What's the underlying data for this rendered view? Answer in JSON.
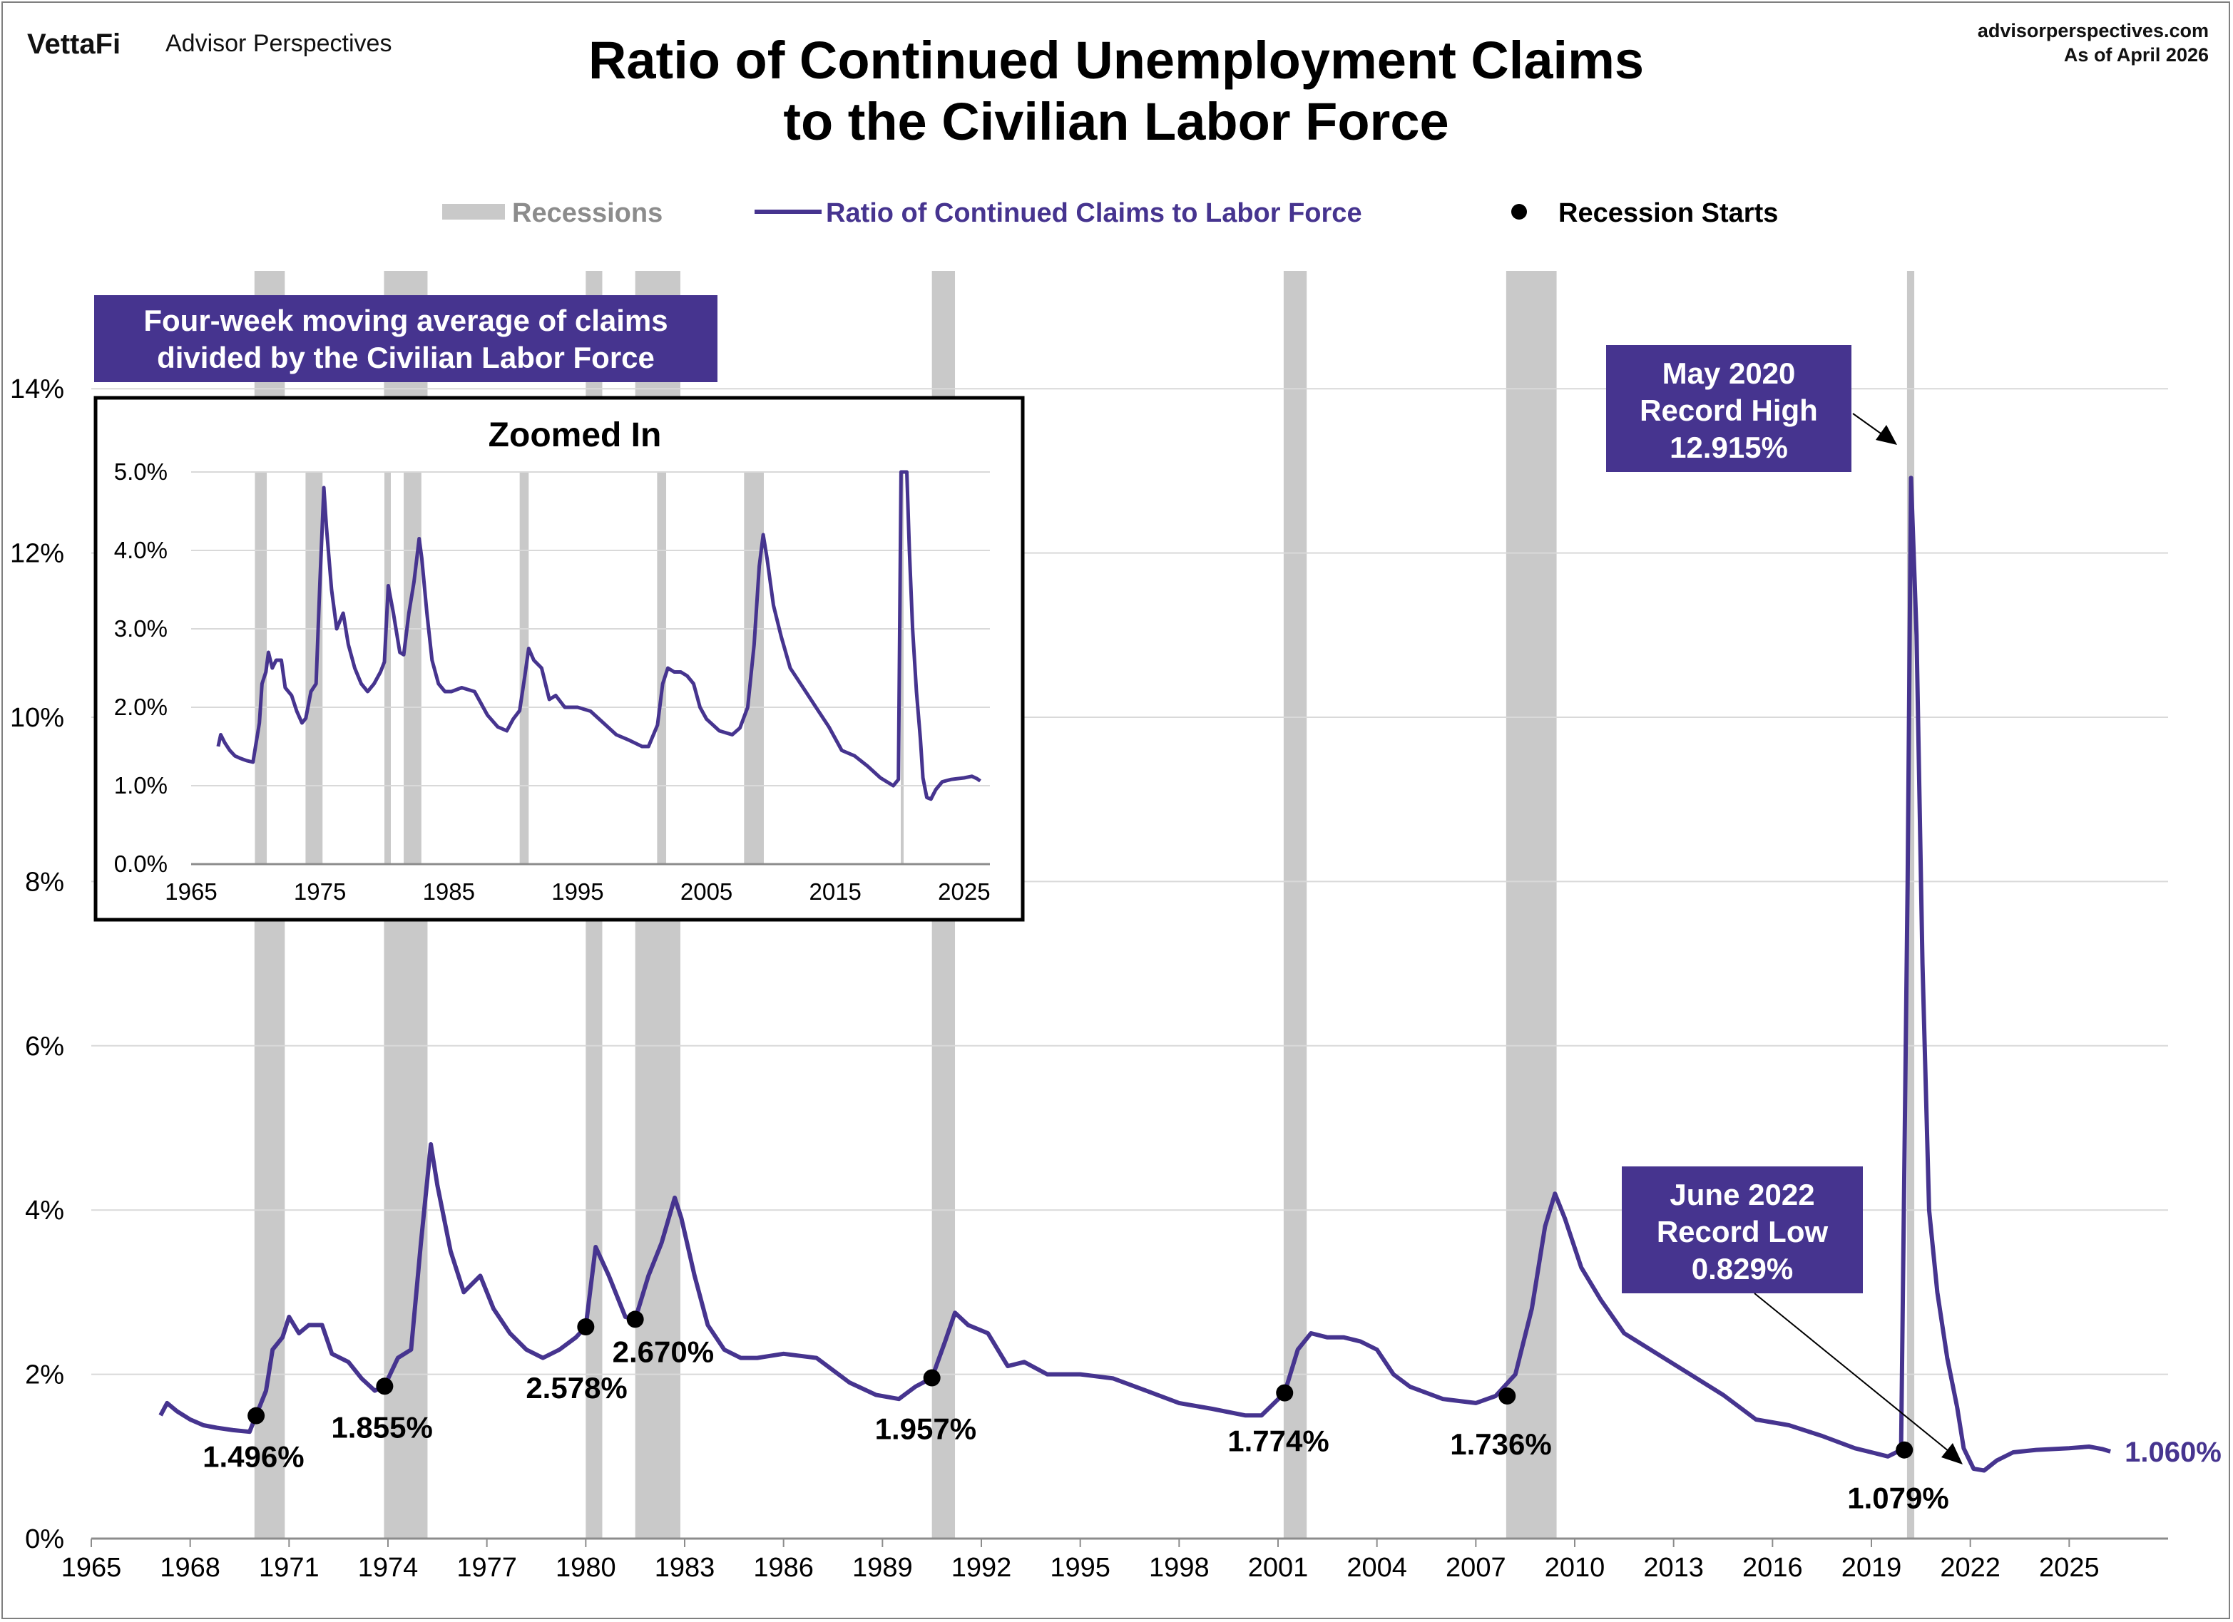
{
  "header": {
    "brand": "VettaFi",
    "brand_sub": "Advisor Perspectives",
    "site": "advisorperspectives.com",
    "as_of": "As of April 2026",
    "title_line1": "Ratio of Continued Unemployment Claims",
    "title_line2": "to the Civilian Labor Force"
  },
  "colors": {
    "series": "#46348f",
    "recession": "#c9c9c9",
    "grid": "#d9d9d9",
    "box": "#46348f"
  },
  "legend": {
    "recessions": "Recessions",
    "series": "Ratio of Continued Claims to Labor Force",
    "starts": "Recession Starts"
  },
  "description_box": {
    "line1": "Four-week moving average of claims",
    "line2": "divided by the Civilian Labor Force"
  },
  "callouts": {
    "high": {
      "line1": "May 2020",
      "line2": "Record High",
      "line3": "12.915%"
    },
    "low": {
      "line1": "June 2022",
      "line2": "Record Low",
      "line3": "0.829%"
    },
    "latest": "1.060%"
  },
  "chart_data": [
    {
      "type": "line",
      "title": "Ratio of Continued Unemployment Claims to the Civilian Labor Force",
      "xlim": [
        1965,
        2028
      ],
      "ylim": [
        0,
        15
      ],
      "x_ticks": [
        1965,
        1968,
        1971,
        1974,
        1977,
        1980,
        1983,
        1986,
        1989,
        1992,
        1995,
        1998,
        2001,
        2004,
        2007,
        2010,
        2013,
        2016,
        2019,
        2022,
        2025
      ],
      "y_ticks": [
        0,
        2,
        4,
        6,
        8,
        10,
        12,
        14
      ],
      "y_tick_labels": [
        "0%",
        "2%",
        "4%",
        "6%",
        "8%",
        "10%",
        "12%",
        "14%"
      ],
      "grid": true,
      "legend_position": "top",
      "recessions": [
        [
          1969.95,
          1970.87
        ],
        [
          1973.88,
          1975.2
        ],
        [
          1980.0,
          1980.5
        ],
        [
          1981.5,
          1982.87
        ],
        [
          1990.5,
          1991.2
        ],
        [
          2001.17,
          2001.87
        ],
        [
          2007.92,
          2009.45
        ],
        [
          2020.08,
          2020.3
        ]
      ],
      "series": [
        {
          "name": "Ratio of Continued Claims to Labor Force",
          "x": [
            1967.1,
            1967.3,
            1967.6,
            1968.0,
            1968.4,
            1968.8,
            1969.3,
            1969.8,
            1970.0,
            1970.3,
            1970.5,
            1970.8,
            1971.0,
            1971.3,
            1971.6,
            1972.0,
            1972.3,
            1972.8,
            1973.2,
            1973.6,
            1973.9,
            1974.3,
            1974.7,
            1975.0,
            1975.3,
            1975.5,
            1975.9,
            1976.3,
            1976.8,
            1977.2,
            1977.7,
            1978.2,
            1978.7,
            1979.2,
            1979.7,
            1980.0,
            1980.3,
            1980.7,
            1981.2,
            1981.5,
            1981.9,
            1982.3,
            1982.7,
            1982.9,
            1983.3,
            1983.7,
            1984.2,
            1984.7,
            1985.2,
            1986.0,
            1987.0,
            1988.0,
            1988.8,
            1989.5,
            1990.0,
            1990.5,
            1990.9,
            1991.2,
            1991.6,
            1992.2,
            1992.8,
            1993.3,
            1994.0,
            1995.0,
            1996.0,
            1997.0,
            1998.0,
            1999.0,
            2000.0,
            2000.5,
            2001.2,
            2001.6,
            2002.0,
            2002.5,
            2003.0,
            2003.5,
            2004.0,
            2004.5,
            2005.0,
            2006.0,
            2007.0,
            2007.6,
            2008.2,
            2008.7,
            2009.1,
            2009.4,
            2009.7,
            2010.2,
            2010.8,
            2011.5,
            2012.5,
            2013.5,
            2014.5,
            2015.5,
            2016.5,
            2017.5,
            2018.5,
            2019.0,
            2019.5,
            2019.9,
            2020.1,
            2020.2,
            2020.37,
            2020.55,
            2020.75,
            2021.0,
            2021.3,
            2021.6,
            2021.8,
            2022.1,
            2022.42,
            2022.8,
            2023.3,
            2024.0,
            2025.0,
            2025.6,
            2026.0,
            2026.25
          ],
          "y": [
            1.5,
            1.65,
            1.55,
            1.45,
            1.38,
            1.35,
            1.32,
            1.3,
            1.5,
            1.8,
            2.3,
            2.45,
            2.7,
            2.5,
            2.6,
            2.6,
            2.25,
            2.15,
            1.95,
            1.8,
            1.86,
            2.2,
            2.3,
            3.6,
            4.8,
            4.3,
            3.5,
            3.0,
            3.2,
            2.8,
            2.5,
            2.3,
            2.2,
            2.3,
            2.45,
            2.578,
            3.55,
            3.2,
            2.7,
            2.67,
            3.2,
            3.6,
            4.15,
            3.9,
            3.2,
            2.6,
            2.3,
            2.2,
            2.2,
            2.25,
            2.2,
            1.9,
            1.75,
            1.7,
            1.85,
            1.957,
            2.4,
            2.75,
            2.6,
            2.5,
            2.1,
            2.15,
            2.0,
            2.0,
            1.95,
            1.8,
            1.65,
            1.58,
            1.5,
            1.5,
            1.774,
            2.3,
            2.5,
            2.45,
            2.45,
            2.4,
            2.3,
            2.0,
            1.85,
            1.7,
            1.65,
            1.736,
            2.0,
            2.8,
            3.8,
            4.2,
            3.9,
            3.3,
            2.9,
            2.5,
            2.25,
            2.0,
            1.75,
            1.45,
            1.38,
            1.25,
            1.1,
            1.05,
            1.0,
            1.079,
            8.0,
            12.915,
            11.0,
            7.0,
            4.0,
            3.0,
            2.2,
            1.6,
            1.1,
            0.85,
            0.829,
            0.95,
            1.05,
            1.08,
            1.1,
            1.12,
            1.09,
            1.06
          ]
        }
      ],
      "recession_start_labels": [
        {
          "x": 1970.0,
          "y": 1.496,
          "label": "1.496%"
        },
        {
          "x": 1973.9,
          "y": 1.855,
          "label": "1.855%"
        },
        {
          "x": 1980.0,
          "y": 2.578,
          "label": "2.578%"
        },
        {
          "x": 1981.5,
          "y": 2.67,
          "label": "2.670%"
        },
        {
          "x": 1990.5,
          "y": 1.957,
          "label": "1.957%"
        },
        {
          "x": 2001.2,
          "y": 1.774,
          "label": "1.774%"
        },
        {
          "x": 2007.95,
          "y": 1.736,
          "label": "1.736%"
        },
        {
          "x": 2020.0,
          "y": 1.079,
          "label": "1.079%"
        }
      ]
    },
    {
      "type": "line",
      "title": "Zoomed In",
      "xlim": [
        1965,
        2027
      ],
      "ylim": [
        0,
        5
      ],
      "x_ticks": [
        1965,
        1975,
        1985,
        1995,
        2005,
        2015,
        2025
      ],
      "y_ticks": [
        0,
        1,
        2,
        3,
        4,
        5
      ],
      "y_tick_labels": [
        "0.0%",
        "1.0%",
        "2.0%",
        "3.0%",
        "4.0%",
        "5.0%"
      ],
      "grid": true,
      "series_ref": "same series as main chart, clipped at 5.0%"
    }
  ]
}
